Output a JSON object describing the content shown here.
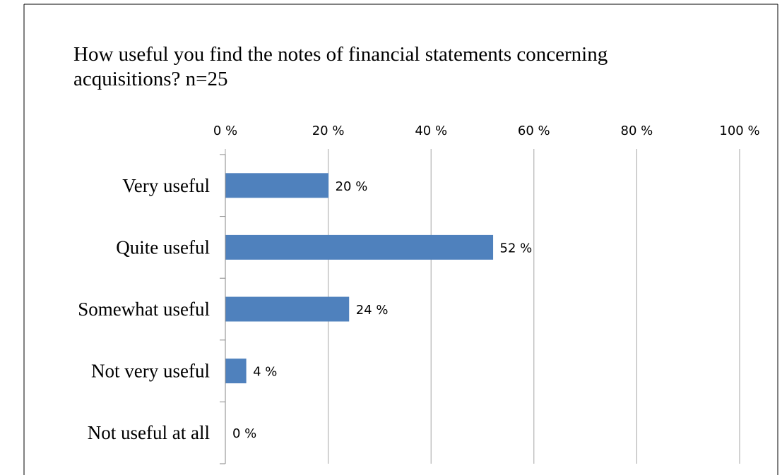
{
  "chart_data": {
    "type": "bar",
    "orientation": "horizontal",
    "title": "How useful you find the notes of financial statements concerning acquisitions? n=25",
    "title_lines": [
      "How useful you find the notes of financial statements concerning",
      "acquisitions? n=25"
    ],
    "categories": [
      "Very useful",
      "Quite useful",
      "Somewhat useful",
      "Not very useful",
      "Not useful at all"
    ],
    "values": [
      20,
      52,
      24,
      4,
      0
    ],
    "value_labels": [
      "20 %",
      "52 %",
      "24 %",
      "4 %",
      "0 %"
    ],
    "xlim": [
      0,
      100
    ],
    "x_ticks": [
      0,
      20,
      40,
      60,
      80,
      100
    ],
    "x_tick_labels": [
      "0 %",
      "20 %",
      "40 %",
      "60 %",
      "80 %",
      "100 %"
    ],
    "x_axis_position": "top",
    "grid": true,
    "legend": "none",
    "bar_color": "#4F81BD",
    "grid_color": "#A6A6A6"
  }
}
